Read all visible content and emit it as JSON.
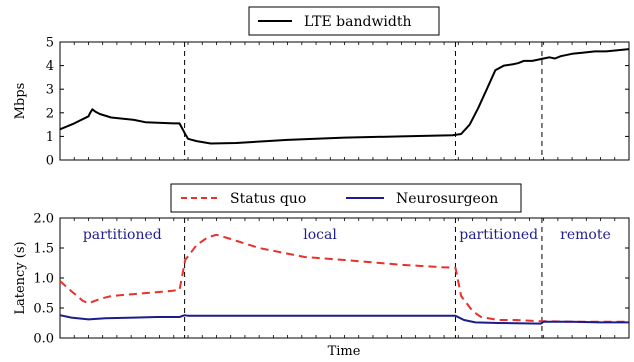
{
  "chart_data": [
    {
      "type": "line",
      "ylabel": "Mbps",
      "ylim": [
        0,
        5
      ],
      "yticks": [
        "0",
        "1",
        "2",
        "3",
        "4",
        "5"
      ],
      "xlim": [
        0,
        100
      ],
      "legend": "top-center",
      "series": [
        {
          "name": "LTE bandwidth",
          "color": "#000000",
          "style": "solid",
          "points": [
            [
              0,
              1.3
            ],
            [
              2.5,
              1.55
            ],
            [
              5,
              1.85
            ],
            [
              5.3,
              2.0
            ],
            [
              5.7,
              2.15
            ],
            [
              6.2,
              2.05
            ],
            [
              7,
              1.95
            ],
            [
              9,
              1.8
            ],
            [
              13,
              1.7
            ],
            [
              15,
              1.6
            ],
            [
              20,
              1.55
            ],
            [
              21,
              1.55
            ],
            [
              22,
              1.1
            ],
            [
              22.5,
              0.9
            ],
            [
              24,
              0.8
            ],
            [
              26.5,
              0.7
            ],
            [
              31,
              0.72
            ],
            [
              40,
              0.85
            ],
            [
              50,
              0.95
            ],
            [
              60,
              1.0
            ],
            [
              69,
              1.05
            ],
            [
              70.5,
              1.1
            ],
            [
              72,
              1.5
            ],
            [
              73.5,
              2.2
            ],
            [
              75,
              3.0
            ],
            [
              76.5,
              3.8
            ],
            [
              78,
              4.0
            ],
            [
              79.5,
              4.05
            ],
            [
              80.5,
              4.1
            ],
            [
              81.5,
              4.2
            ],
            [
              83,
              4.2
            ],
            [
              85,
              4.3
            ],
            [
              86,
              4.35
            ],
            [
              87,
              4.3
            ],
            [
              88,
              4.4
            ],
            [
              90,
              4.5
            ],
            [
              92,
              4.55
            ],
            [
              94,
              4.6
            ],
            [
              96,
              4.6
            ],
            [
              98,
              4.65
            ],
            [
              100,
              4.7
            ]
          ]
        }
      ],
      "vlines": [
        21.9,
        69.5,
        84.7
      ],
      "grid": false
    },
    {
      "type": "line",
      "ylabel": "Latency (s)",
      "xlabel": "Time",
      "ylim": [
        0,
        2
      ],
      "yticks": [
        "0.0",
        "0.5",
        "1.0",
        "1.5",
        "2.0"
      ],
      "xlim": [
        0,
        100
      ],
      "legend": "top-center",
      "regions": [
        {
          "label": "partitioned",
          "from": 0,
          "to": 21.9
        },
        {
          "label": "local",
          "from": 21.9,
          "to": 69.5
        },
        {
          "label": "partitioned",
          "from": 69.5,
          "to": 84.7
        },
        {
          "label": "remote",
          "from": 84.7,
          "to": 100
        }
      ],
      "vlines": [
        21.9,
        69.5,
        84.7
      ],
      "series": [
        {
          "name": "Status quo",
          "color": "#e8312a",
          "style": "dashed",
          "points": [
            [
              0,
              0.95
            ],
            [
              2,
              0.78
            ],
            [
              4,
              0.62
            ],
            [
              5,
              0.58
            ],
            [
              7,
              0.65
            ],
            [
              9,
              0.7
            ],
            [
              14,
              0.74
            ],
            [
              19,
              0.78
            ],
            [
              21,
              0.8
            ],
            [
              22,
              1.3
            ],
            [
              24,
              1.55
            ],
            [
              26,
              1.68
            ],
            [
              27.5,
              1.72
            ],
            [
              30,
              1.65
            ],
            [
              35,
              1.5
            ],
            [
              43,
              1.35
            ],
            [
              50,
              1.3
            ],
            [
              60,
              1.22
            ],
            [
              67,
              1.18
            ],
            [
              69.5,
              1.17
            ],
            [
              70.5,
              0.7
            ],
            [
              72.5,
              0.45
            ],
            [
              74,
              0.35
            ],
            [
              77,
              0.3
            ],
            [
              80,
              0.3
            ],
            [
              84.5,
              0.28
            ],
            [
              85,
              0.28
            ],
            [
              90,
              0.27
            ],
            [
              95,
              0.27
            ],
            [
              100,
              0.27
            ]
          ]
        },
        {
          "name": "Neurosurgeon",
          "color": "#1c1c8c",
          "style": "solid",
          "points": [
            [
              0,
              0.38
            ],
            [
              2,
              0.34
            ],
            [
              5,
              0.31
            ],
            [
              8,
              0.33
            ],
            [
              13,
              0.34
            ],
            [
              17,
              0.35
            ],
            [
              21,
              0.35
            ],
            [
              21.9,
              0.38
            ],
            [
              22.5,
              0.37
            ],
            [
              40,
              0.37
            ],
            [
              60,
              0.37
            ],
            [
              69.5,
              0.37
            ],
            [
              71,
              0.3
            ],
            [
              73,
              0.26
            ],
            [
              77,
              0.25
            ],
            [
              84.5,
              0.24
            ],
            [
              85,
              0.27
            ],
            [
              90,
              0.27
            ],
            [
              95,
              0.26
            ],
            [
              100,
              0.26
            ]
          ]
        }
      ],
      "grid": false
    }
  ]
}
